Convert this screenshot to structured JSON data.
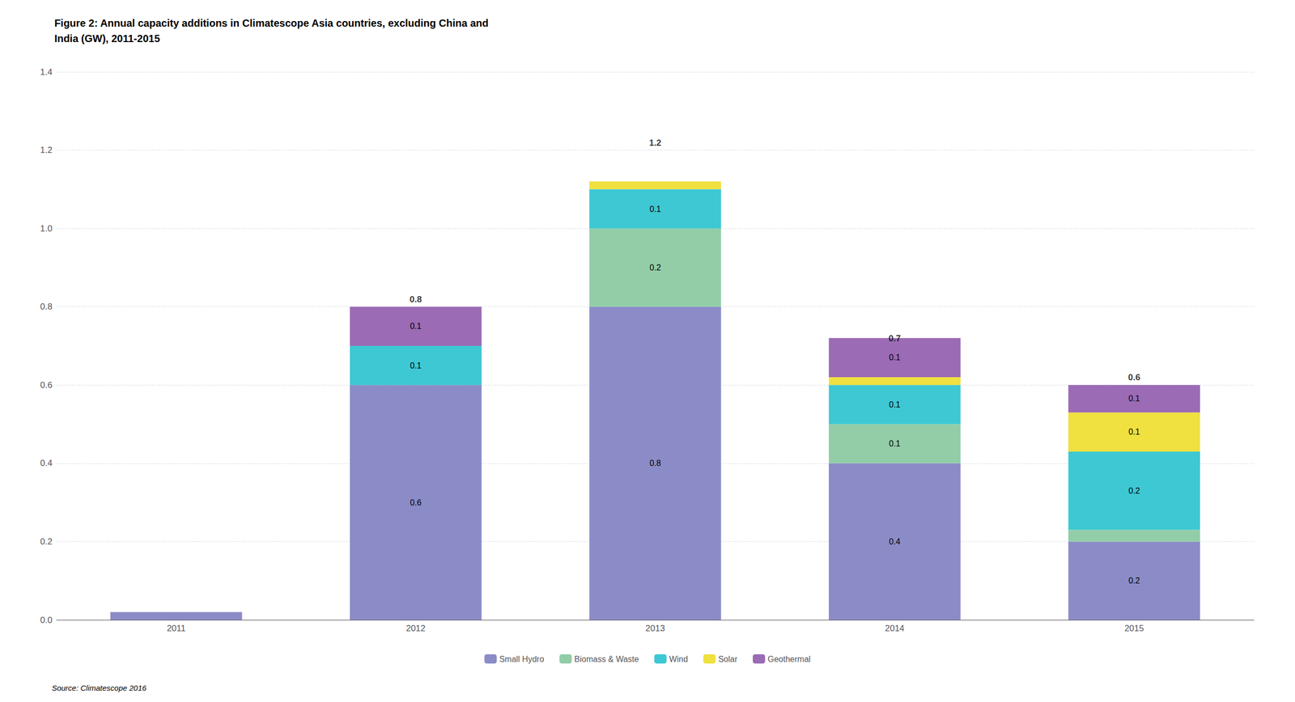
{
  "chart_data": {
    "type": "bar",
    "title": "Figure 2: Annual capacity additions in Climatescope Asia countries, excluding China and\nIndia (GW), 2011-2015",
    "annotations": [
      "Source: Climatescope 2016"
    ],
    "categories": [
      "2011",
      "2012",
      "2013",
      "2014",
      "2015"
    ],
    "stacked": true,
    "data_labels": true,
    "series": [
      {
        "name": "Small Hydro",
        "color": "#8B8CC7",
        "values": [
          0.02,
          0.6,
          0.8,
          0.4,
          0.2
        ],
        "value_labels": [
          null,
          "0.6",
          "0.8",
          "0.4",
          "0.2"
        ]
      },
      {
        "name": "Biomass & Waste",
        "color": "#92CDA8",
        "values": [
          0.0,
          0.0,
          0.2,
          0.1,
          0.03
        ],
        "value_labels": [
          null,
          null,
          "0.2",
          "0.1",
          null
        ]
      },
      {
        "name": "Wind",
        "color": "#3EC8D4",
        "values": [
          0.0,
          0.1,
          0.1,
          0.1,
          0.2
        ],
        "value_labels": [
          null,
          "0.1",
          "0.1",
          "0.1",
          "0.2"
        ]
      },
      {
        "name": "Solar",
        "color": "#F0E040",
        "values": [
          0.0,
          0.0,
          0.02,
          0.02,
          0.1
        ],
        "value_labels": [
          null,
          null,
          null,
          null,
          "0.1"
        ]
      },
      {
        "name": "Geothermal",
        "color": "#9B6BB5",
        "values": [
          0.0,
          0.1,
          0.0,
          0.1,
          0.07
        ],
        "value_labels": [
          null,
          "0.1",
          null,
          "0.1",
          "0.1"
        ]
      }
    ],
    "totals": [
      null,
      0.8,
      1.2,
      0.7,
      0.6
    ],
    "ylim": [
      0,
      1.4
    ],
    "yticks": [
      {
        "value": 0,
        "label": "0.0"
      },
      0.2,
      0.4,
      0.6,
      0.8,
      {
        "value": 1,
        "label": "1.0"
      },
      1.2,
      1.4
    ],
    "grid": true,
    "legend": "bottom"
  }
}
